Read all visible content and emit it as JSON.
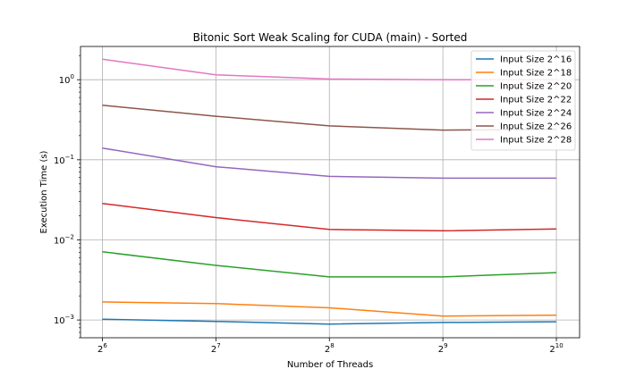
{
  "chart_data": {
    "type": "line",
    "title": "Bitonic Sort Weak Scaling for CUDA (main) - Sorted",
    "xlabel": "Number of Threads",
    "ylabel": "Execution Time (s)",
    "x_scale": "log2",
    "y_scale": "log10",
    "x": [
      64,
      128,
      256,
      512,
      1024
    ],
    "x_tick_labels": [
      {
        "base": "2",
        "exp": "6"
      },
      {
        "base": "2",
        "exp": "7"
      },
      {
        "base": "2",
        "exp": "8"
      },
      {
        "base": "2",
        "exp": "9"
      },
      {
        "base": "2",
        "exp": "10"
      }
    ],
    "y_tick_labels": [
      {
        "value": 0.001,
        "base": "10",
        "exp": "−3"
      },
      {
        "value": 0.01,
        "base": "10",
        "exp": "−2"
      },
      {
        "value": 0.1,
        "base": "10",
        "exp": "−1"
      },
      {
        "value": 1,
        "base": "10",
        "exp": "0"
      }
    ],
    "xlim": [
      56,
      1180
    ],
    "ylim": [
      0.0006,
      2.6
    ],
    "grid": true,
    "legend_position": "top-right",
    "series": [
      {
        "name": "Input Size 2^16",
        "color": "#1f77b4",
        "values": [
          0.00102,
          0.00096,
          0.00089,
          0.00093,
          0.00095
        ]
      },
      {
        "name": "Input Size 2^18",
        "color": "#ff7f0e",
        "values": [
          0.00168,
          0.0016,
          0.00142,
          0.00112,
          0.00115
        ]
      },
      {
        "name": "Input Size 2^20",
        "color": "#2ca02c",
        "values": [
          0.0071,
          0.0048,
          0.00345,
          0.00345,
          0.0039
        ]
      },
      {
        "name": "Input Size 2^22",
        "color": "#d62728",
        "values": [
          0.0285,
          0.019,
          0.0135,
          0.013,
          0.0137
        ]
      },
      {
        "name": "Input Size 2^24",
        "color": "#9467bd",
        "values": [
          0.14,
          0.082,
          0.062,
          0.059,
          0.059
        ]
      },
      {
        "name": "Input Size 2^26",
        "color": "#8c564b",
        "values": [
          0.48,
          0.35,
          0.265,
          0.235,
          0.24
        ]
      },
      {
        "name": "Input Size 2^28",
        "color": "#e377c2",
        "values": [
          1.8,
          1.15,
          1.02,
          1.0,
          1.0
        ]
      }
    ]
  }
}
